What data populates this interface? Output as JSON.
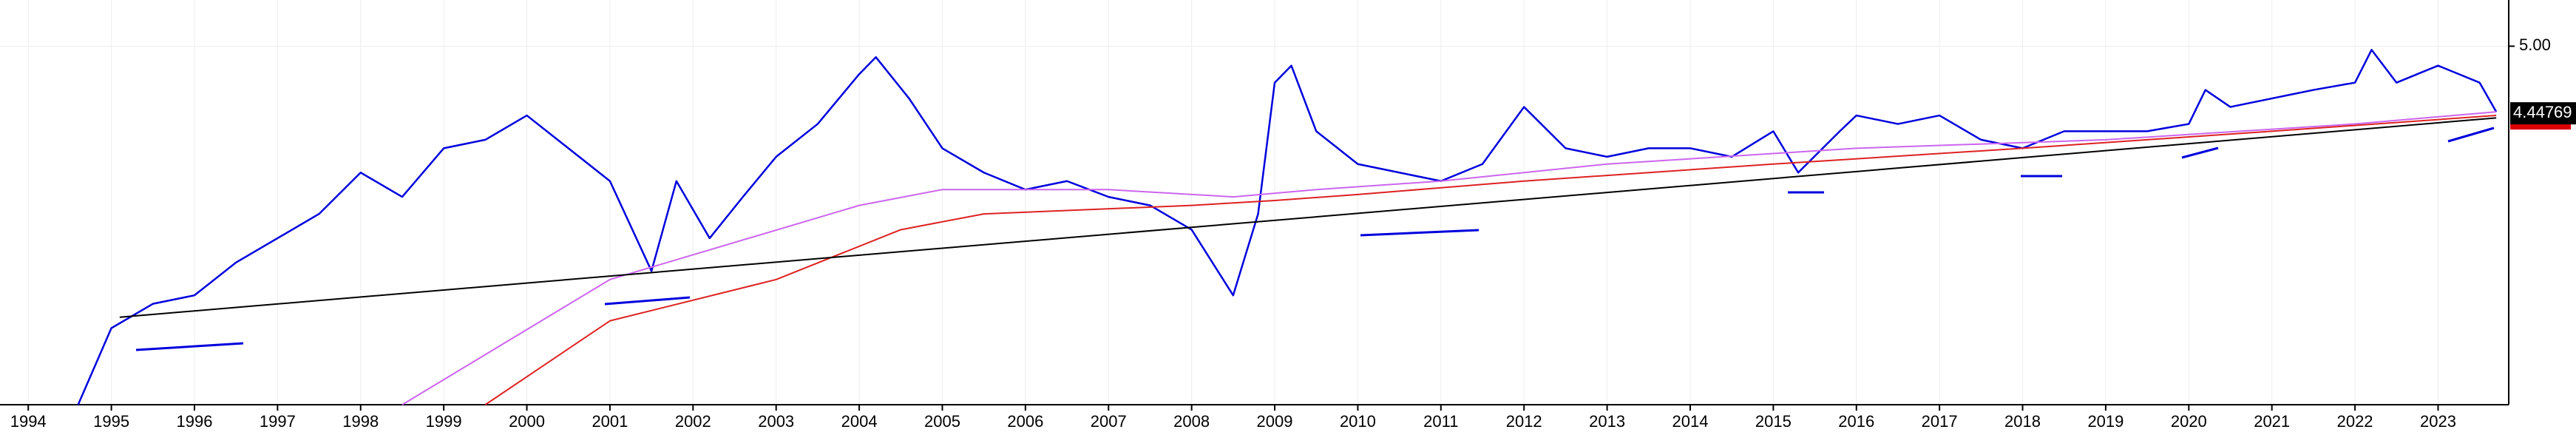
{
  "chart_data": {
    "type": "line",
    "xlim": [
      1993.66,
      2023.85
    ],
    "xticks": [
      1994,
      1995,
      1996,
      1997,
      1998,
      1999,
      2000,
      2001,
      2002,
      2003,
      2004,
      2005,
      2006,
      2007,
      2008,
      2009,
      2010,
      2011,
      2012,
      2013,
      2014,
      2015,
      2016,
      2017,
      2018,
      2019,
      2020,
      2021,
      2022,
      2023
    ],
    "ylim": [
      2.05,
      5.38
    ],
    "yticks": [
      {
        "value": 5,
        "label": "5.00"
      }
    ],
    "grid": true,
    "last_price": 4.44769,
    "series": [
      {
        "color": "#0000dd",
        "x": [
          1994.6,
          1995.0,
          1995.5,
          1996.0,
          1996.5,
          1997.0,
          1997.5,
          1998.0,
          1998.5,
          1999.0,
          1999.5,
          2000.0,
          2000.5,
          2001.0,
          2001.5,
          2001.8,
          2002.2,
          2002.6,
          2003.0,
          2003.5,
          2004.0,
          2004.2,
          2004.6,
          2005.0,
          2005.5,
          2006.0,
          2006.5,
          2007.0,
          2007.5,
          2008.0,
          2008.5,
          2008.8,
          2009.0,
          2009.2,
          2009.5,
          2010.0,
          2010.5,
          2011.0,
          2011.5,
          2012.0,
          2012.5,
          2013.0,
          2013.5,
          2014.0,
          2014.5,
          2015.0,
          2015.3,
          2015.8,
          2016.0,
          2016.5,
          2017.0,
          2017.5,
          2018.0,
          2018.5,
          2019.0,
          2019.5,
          2020.0,
          2020.2,
          2020.5,
          2021.0,
          2021.5,
          2022.0,
          2022.2,
          2022.5,
          2023.0,
          2023.5,
          2023.7
        ],
        "values": [
          2.05,
          2.68,
          2.88,
          2.95,
          3.22,
          3.42,
          3.62,
          3.96,
          3.76,
          4.16,
          4.23,
          4.43,
          4.16,
          3.89,
          3.15,
          3.89,
          3.42,
          3.76,
          4.09,
          4.36,
          4.77,
          4.91,
          4.57,
          4.16,
          3.96,
          3.82,
          3.89,
          3.76,
          3.69,
          3.49,
          2.95,
          3.62,
          4.7,
          4.84,
          4.3,
          4.03,
          3.96,
          3.89,
          4.03,
          4.5,
          4.16,
          4.09,
          4.16,
          4.16,
          4.09,
          4.3,
          3.96,
          4.3,
          4.43,
          4.36,
          4.43,
          4.23,
          4.16,
          4.3,
          4.3,
          4.3,
          4.36,
          4.64,
          4.5,
          4.57,
          4.64,
          4.7,
          4.97,
          4.7,
          4.84,
          4.7,
          4.46
        ]
      },
      {
        "color": "#cc66ee",
        "x": [
          1998.5,
          2001.0,
          2004.0,
          2005.0,
          2007.0,
          2008.5,
          2009.5,
          2011.0,
          2013.0,
          2016.0,
          2019.0,
          2022.0,
          2023.7
        ],
        "values": [
          2.05,
          3.08,
          3.69,
          3.82,
          3.82,
          3.76,
          3.82,
          3.89,
          4.03,
          4.16,
          4.23,
          4.36,
          4.46
        ]
      },
      {
        "color": "#dd2222",
        "x": [
          1999.5,
          2001.0,
          2003.0,
          2004.5,
          2005.5,
          2008.0,
          2009.0,
          2010.0,
          2012.0,
          2015.0,
          2018.0,
          2021.0,
          2023.7
        ],
        "values": [
          2.05,
          2.74,
          3.08,
          3.49,
          3.62,
          3.69,
          3.73,
          3.78,
          3.89,
          4.03,
          4.16,
          4.3,
          4.43
        ]
      },
      {
        "color": "#000000",
        "x": [
          1995.1,
          2023.7
        ],
        "values": [
          2.77,
          4.41
        ]
      }
    ]
  }
}
